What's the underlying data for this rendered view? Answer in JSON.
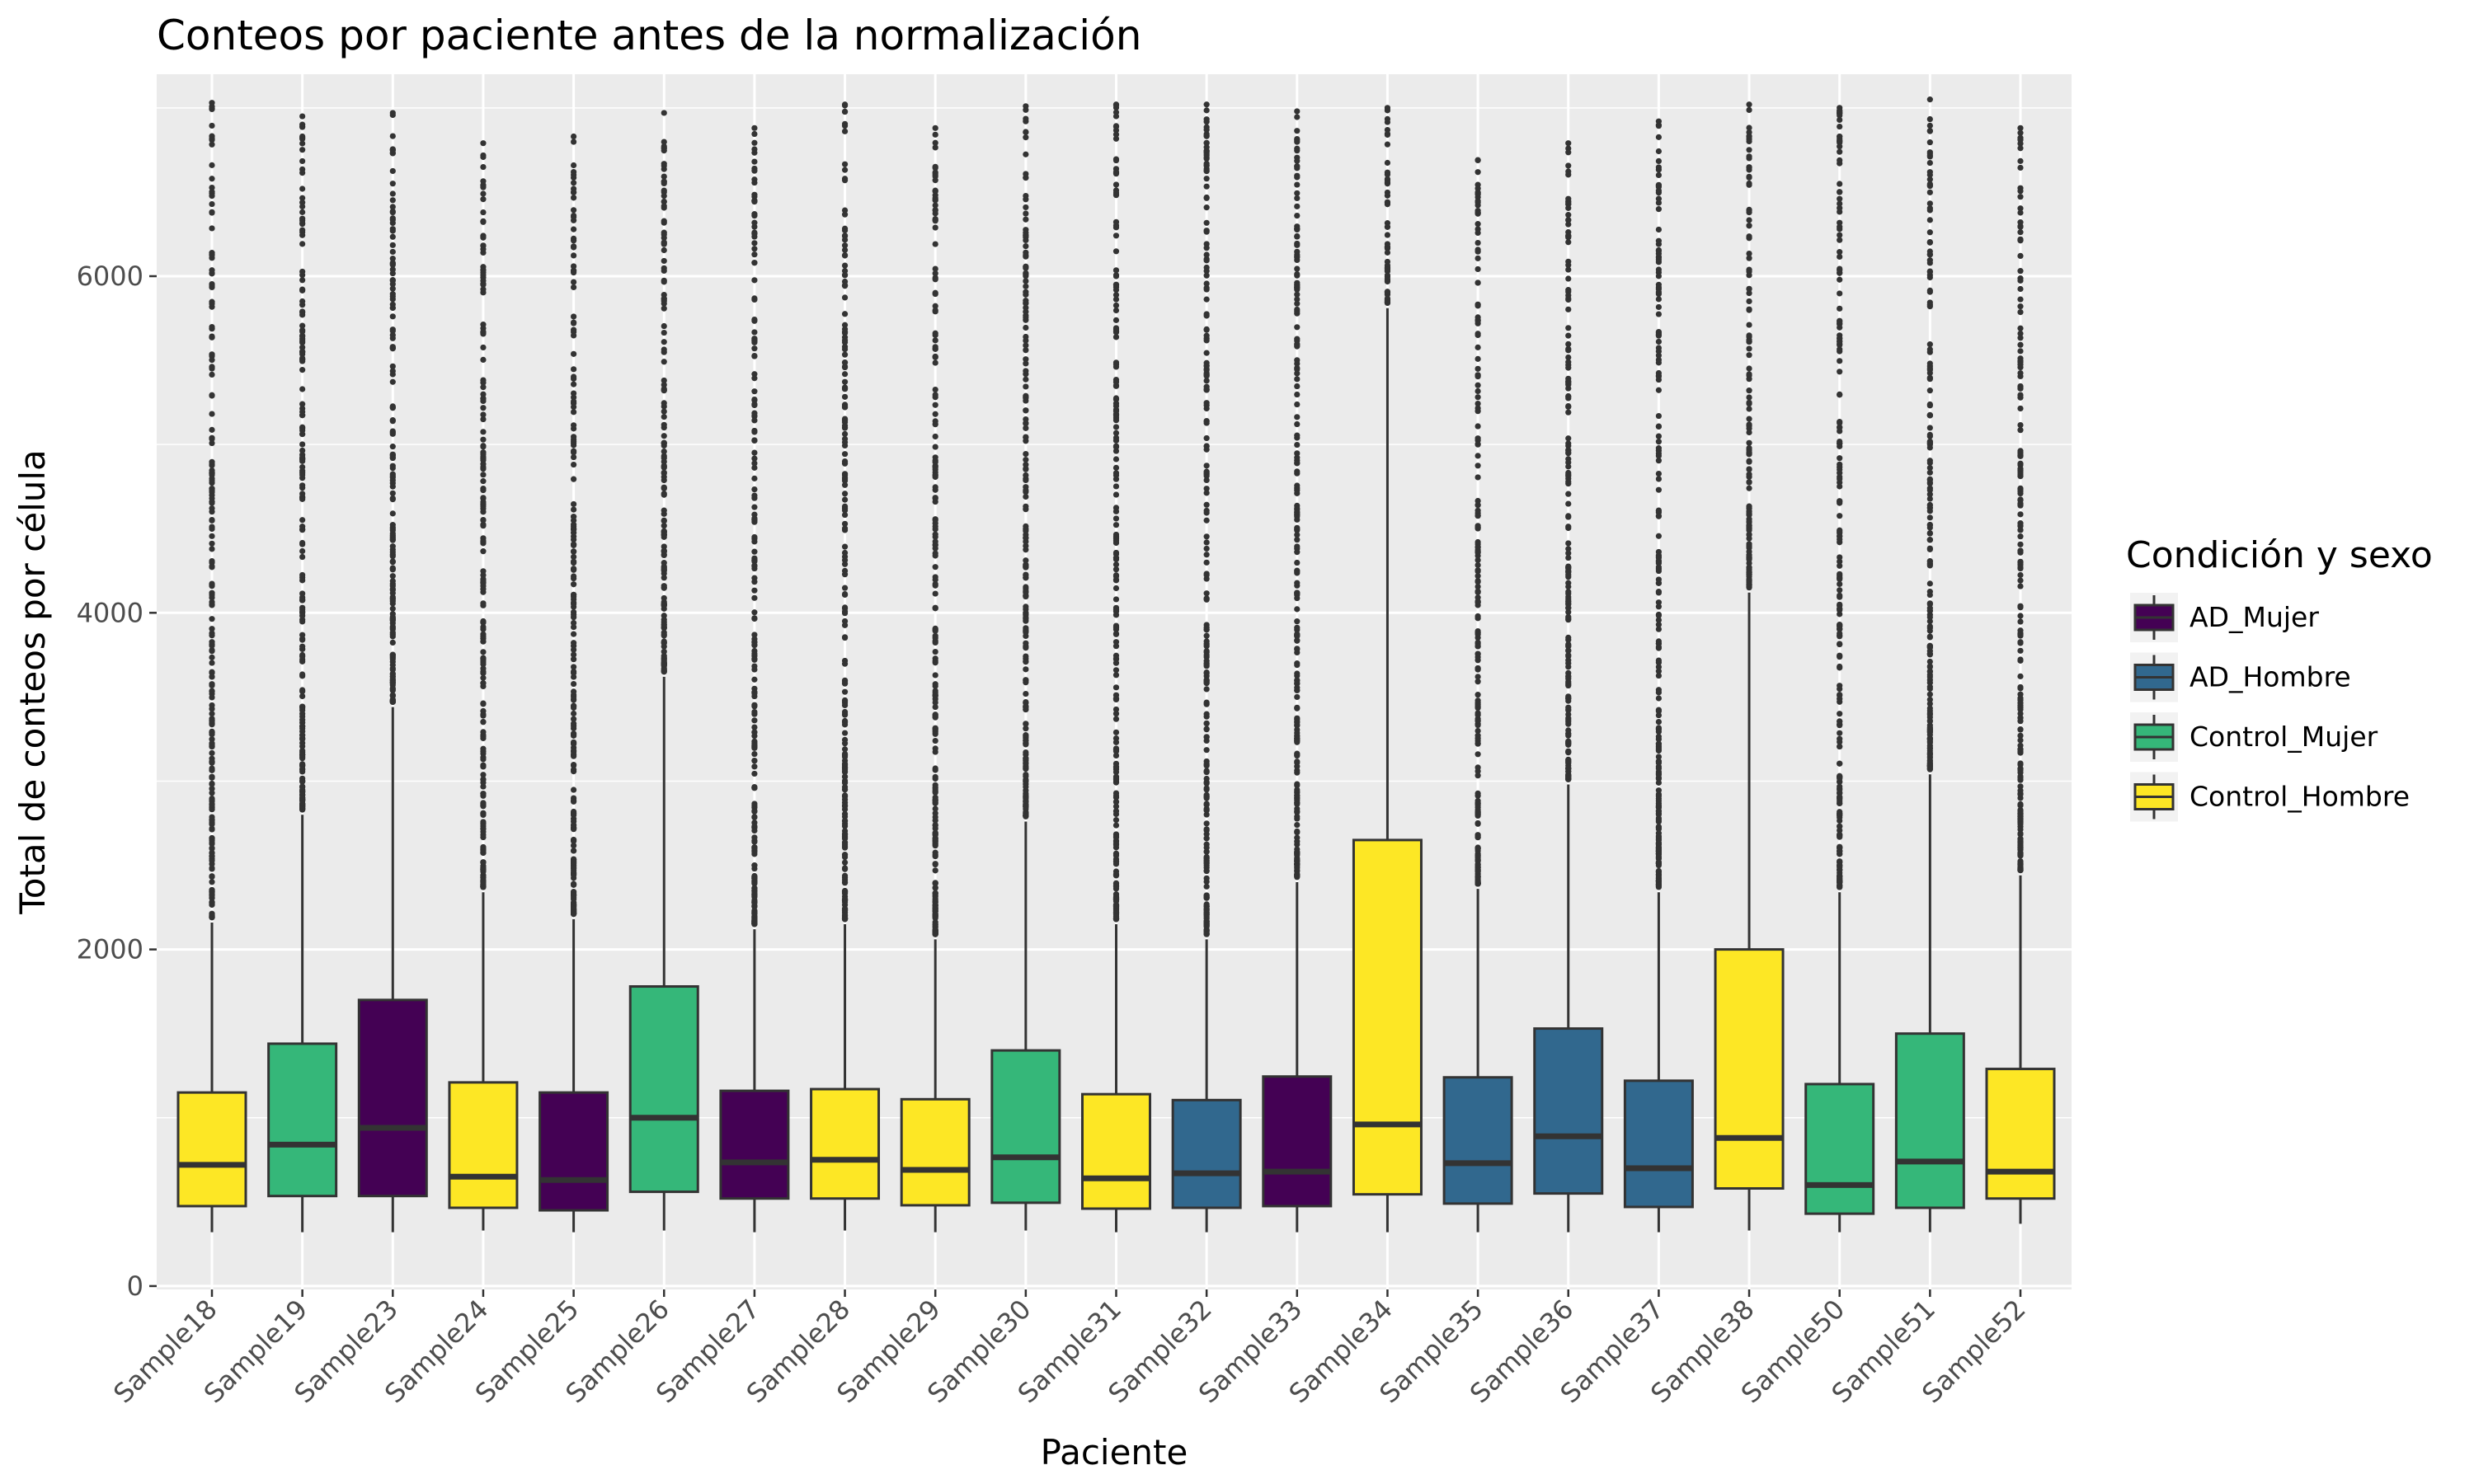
{
  "chart_data": {
    "type": "boxplot",
    "title": "Conteos por paciente antes de la normalización",
    "xlabel": "Paciente",
    "ylabel": "Total de conteos por célula",
    "ylim": [
      -20,
      7200
    ],
    "y_ticks": [
      0,
      2000,
      4000,
      6000
    ],
    "y_tick_labels": [
      "0",
      "2000",
      "4000",
      "6000"
    ],
    "grid": true,
    "legend": {
      "title": "Condición y sexo",
      "position": "right",
      "entries": [
        {
          "name": "AD_Mujer",
          "color": "#440154"
        },
        {
          "name": "AD_Hombre",
          "color": "#31688E"
        },
        {
          "name": "Control_Mujer",
          "color": "#35B779"
        },
        {
          "name": "Control_Hombre",
          "color": "#FDE725"
        }
      ]
    },
    "categories": [
      "Sample18",
      "Sample19",
      "Sample23",
      "Sample24",
      "Sample25",
      "Sample26",
      "Sample27",
      "Sample28",
      "Sample29",
      "Sample30",
      "Sample31",
      "Sample32",
      "Sample33",
      "Sample34",
      "Sample35",
      "Sample36",
      "Sample37",
      "Sample38",
      "Sample50",
      "Sample51",
      "Sample52"
    ],
    "boxes": [
      {
        "sample": "Sample18",
        "group": "Control_Hombre",
        "min": 320,
        "q1": 475,
        "median": 720,
        "q3": 1150,
        "max": 2160,
        "outlier_max": 7030
      },
      {
        "sample": "Sample19",
        "group": "Control_Mujer",
        "min": 320,
        "q1": 535,
        "median": 840,
        "q3": 1440,
        "max": 2800,
        "outlier_max": 6950
      },
      {
        "sample": "Sample23",
        "group": "AD_Mujer",
        "min": 320,
        "q1": 535,
        "median": 940,
        "q3": 1700,
        "max": 3440,
        "outlier_max": 6970
      },
      {
        "sample": "Sample24",
        "group": "Control_Hombre",
        "min": 330,
        "q1": 465,
        "median": 650,
        "q3": 1210,
        "max": 2340,
        "outlier_max": 6790
      },
      {
        "sample": "Sample25",
        "group": "AD_Mujer",
        "min": 320,
        "q1": 450,
        "median": 630,
        "q3": 1150,
        "max": 2180,
        "outlier_max": 6830
      },
      {
        "sample": "Sample26",
        "group": "Control_Mujer",
        "min": 330,
        "q1": 560,
        "median": 1000,
        "q3": 1780,
        "max": 3620,
        "outlier_max": 6970
      },
      {
        "sample": "Sample27",
        "group": "AD_Mujer",
        "min": 320,
        "q1": 520,
        "median": 735,
        "q3": 1160,
        "max": 2120,
        "outlier_max": 6880
      },
      {
        "sample": "Sample28",
        "group": "Control_Hombre",
        "min": 330,
        "q1": 520,
        "median": 750,
        "q3": 1170,
        "max": 2150,
        "outlier_max": 7020
      },
      {
        "sample": "Sample29",
        "group": "Control_Hombre",
        "min": 320,
        "q1": 480,
        "median": 690,
        "q3": 1110,
        "max": 2060,
        "outlier_max": 6880
      },
      {
        "sample": "Sample30",
        "group": "Control_Mujer",
        "min": 330,
        "q1": 495,
        "median": 765,
        "q3": 1400,
        "max": 2760,
        "outlier_max": 7010
      },
      {
        "sample": "Sample31",
        "group": "Control_Hombre",
        "min": 320,
        "q1": 460,
        "median": 640,
        "q3": 1140,
        "max": 2150,
        "outlier_max": 7020
      },
      {
        "sample": "Sample32",
        "group": "AD_Hombre",
        "min": 320,
        "q1": 465,
        "median": 670,
        "q3": 1105,
        "max": 2060,
        "outlier_max": 7020
      },
      {
        "sample": "Sample33",
        "group": "AD_Mujer",
        "min": 320,
        "q1": 475,
        "median": 680,
        "q3": 1245,
        "max": 2400,
        "outlier_max": 6980
      },
      {
        "sample": "Sample34",
        "group": "Control_Hombre",
        "min": 320,
        "q1": 545,
        "median": 960,
        "q3": 2650,
        "max": 5810,
        "outlier_max": 7000
      },
      {
        "sample": "Sample35",
        "group": "AD_Hombre",
        "min": 320,
        "q1": 490,
        "median": 730,
        "q3": 1240,
        "max": 2360,
        "outlier_max": 6690
      },
      {
        "sample": "Sample36",
        "group": "AD_Hombre",
        "min": 320,
        "q1": 550,
        "median": 890,
        "q3": 1530,
        "max": 2980,
        "outlier_max": 6790
      },
      {
        "sample": "Sample37",
        "group": "AD_Hombre",
        "min": 320,
        "q1": 470,
        "median": 700,
        "q3": 1220,
        "max": 2340,
        "outlier_max": 6920
      },
      {
        "sample": "Sample38",
        "group": "Control_Hombre",
        "min": 330,
        "q1": 580,
        "median": 880,
        "q3": 2000,
        "max": 4120,
        "outlier_max": 7020
      },
      {
        "sample": "Sample50",
        "group": "Control_Mujer",
        "min": 320,
        "q1": 430,
        "median": 600,
        "q3": 1200,
        "max": 2340,
        "outlier_max": 7000
      },
      {
        "sample": "Sample51",
        "group": "Control_Mujer",
        "min": 320,
        "q1": 465,
        "median": 740,
        "q3": 1500,
        "max": 3040,
        "outlier_max": 7050
      },
      {
        "sample": "Sample52",
        "group": "Control_Hombre",
        "min": 370,
        "q1": 520,
        "median": 680,
        "q3": 1290,
        "max": 2440,
        "outlier_max": 6880
      }
    ]
  }
}
